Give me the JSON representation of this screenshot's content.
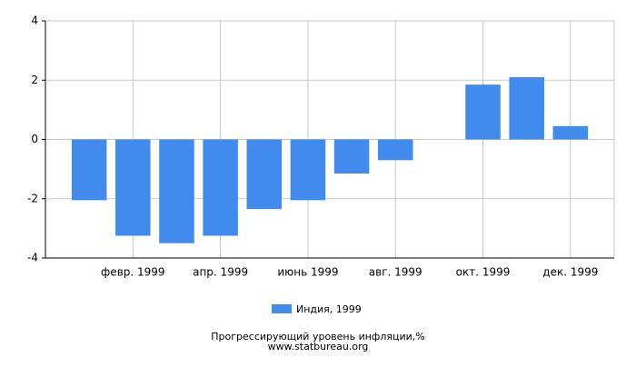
{
  "chart_data": {
    "type": "bar",
    "title": "Прогрессирующий уровень инфляции,%",
    "subtitle": "www.statbureau.org",
    "categories": [
      null,
      "февр. 1999",
      null,
      "апр. 1999",
      null,
      "июнь 1999",
      null,
      "авг. 1999",
      null,
      "окт. 1999",
      null,
      "дек. 1999"
    ],
    "series": [
      {
        "name": "Индия, 1999",
        "color": "#418bee",
        "values": [
          -2.05,
          -3.25,
          -3.5,
          -3.25,
          -2.35,
          -2.05,
          -1.15,
          -0.7,
          0,
          1.85,
          2.1,
          0.45
        ]
      }
    ],
    "ylim": [
      -4,
      4
    ],
    "yticks": [
      -4,
      -2,
      0,
      2,
      4
    ],
    "grid": true
  }
}
